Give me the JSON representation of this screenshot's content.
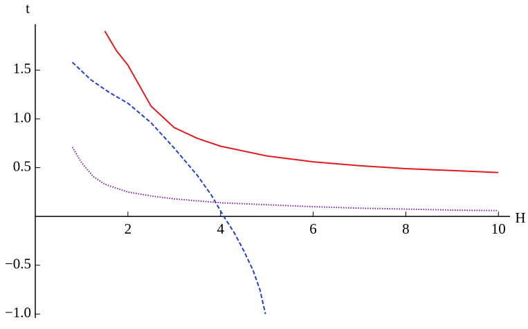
{
  "chart_data": {
    "type": "line",
    "x_label": "H",
    "y_label": "t",
    "xlim": [
      0,
      10.25
    ],
    "ylim": [
      -1.04,
      1.97
    ],
    "xticks": [
      2,
      4,
      6,
      8,
      10
    ],
    "yticks": [
      {
        "value": -1,
        "label": "−1.0"
      },
      {
        "value": -0.5,
        "label": "−0.5"
      },
      0.5,
      {
        "value": 1,
        "label": "1.0"
      },
      1.5
    ],
    "series": [
      {
        "color": "#e31a1c",
        "dash": "solid",
        "x": [
          1.5,
          1.75,
          2,
          2.5,
          3,
          3.5,
          4,
          5,
          6,
          7,
          8,
          9,
          10
        ],
        "values": [
          1.9,
          1.7,
          1.55,
          1.13,
          0.91,
          0.8,
          0.72,
          0.62,
          0.56,
          0.52,
          0.49,
          0.47,
          0.45
        ]
      },
      {
        "color": "#1f3fd6",
        "dash": "dashed",
        "x": [
          0.8,
          1.2,
          1.6,
          2,
          2.5,
          3,
          3.5,
          3.8,
          4.07,
          4.3,
          4.5,
          4.7,
          4.85,
          4.97
        ],
        "values": [
          1.58,
          1.4,
          1.27,
          1.16,
          0.96,
          0.7,
          0.42,
          0.22,
          0.0,
          -0.17,
          -0.35,
          -0.55,
          -0.75,
          -1.0
        ]
      },
      {
        "color": "#7a1fa2",
        "dash": "dotted",
        "x": [
          0.8,
          1,
          1.25,
          1.5,
          2,
          2.5,
          3,
          4,
          5,
          6,
          7,
          8,
          9,
          10
        ],
        "values": [
          0.71,
          0.55,
          0.41,
          0.33,
          0.25,
          0.21,
          0.18,
          0.14,
          0.12,
          0.1,
          0.085,
          0.075,
          0.065,
          0.06
        ]
      }
    ]
  }
}
